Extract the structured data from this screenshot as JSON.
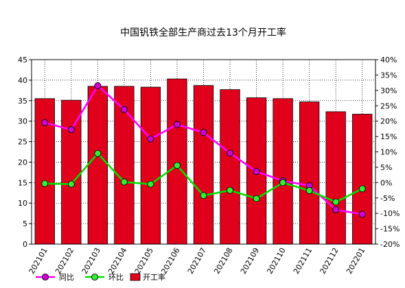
{
  "chart_data": {
    "type": "bar",
    "title": "中国钒铁全部生产商过去13个月开工率",
    "categories": [
      "202101",
      "202102",
      "202103",
      "202104",
      "202105",
      "202106",
      "202107",
      "202108",
      "202109",
      "202110",
      "202111",
      "202112",
      "202201"
    ],
    "left_axis": {
      "ylim": [
        0,
        45
      ],
      "ticks": [
        "0",
        "5",
        "10",
        "15",
        "20",
        "25",
        "30",
        "35",
        "40",
        "45"
      ]
    },
    "right_axis": {
      "ylim": [
        -20,
        40
      ],
      "ticks": [
        "-20%",
        "-15%",
        "-10%",
        "-5%",
        "0%",
        "5%",
        "10%",
        "15%",
        "20%",
        "25%",
        "30%",
        "35%",
        "40%"
      ]
    },
    "grid": true,
    "legend_position": "bottom-left",
    "series": [
      {
        "name": "开工率",
        "type": "bar",
        "axis": "left",
        "color": "#e0001b",
        "values": [
          35.5,
          35.1,
          38.5,
          38.5,
          38.3,
          40.3,
          38.7,
          37.7,
          35.7,
          35.5,
          34.7,
          32.3,
          31.7
        ]
      },
      {
        "name": "同比",
        "type": "line",
        "axis": "right",
        "color": "#ff00ff",
        "marker_fill": "#d000d0",
        "values": [
          19.5,
          17.2,
          31.5,
          23.8,
          14.2,
          18.9,
          16.3,
          9.6,
          3.6,
          0.6,
          -1.0,
          -8.8,
          -10.3
        ]
      },
      {
        "name": "环比",
        "type": "line",
        "axis": "right",
        "color": "#00e000",
        "marker_fill": "#33ee33",
        "values": [
          -0.3,
          -0.5,
          9.5,
          0.2,
          -0.5,
          5.6,
          -4.2,
          -2.5,
          -5.2,
          0.0,
          -2.6,
          -6.3,
          -2.0
        ]
      }
    ]
  }
}
